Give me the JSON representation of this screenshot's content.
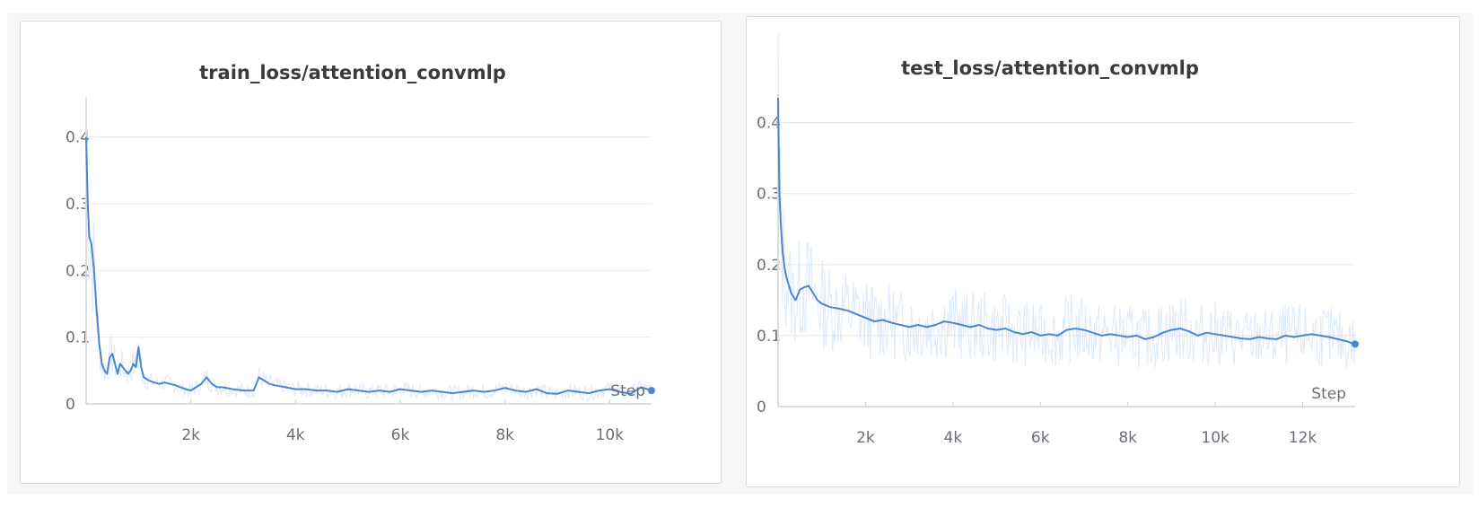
{
  "chart_data": [
    {
      "type": "line",
      "title": "train_loss/attention_convmlp",
      "xlabel": "Step",
      "ylabel": "",
      "xlim": [
        0,
        10800
      ],
      "ylim": [
        0,
        0.46
      ],
      "xticks": [
        2000,
        4000,
        6000,
        8000,
        10000
      ],
      "xtick_labels": [
        "2k",
        "4k",
        "6k",
        "8k",
        "10k"
      ],
      "yticks": [
        0,
        0.1,
        0.2,
        0.3,
        0.4
      ],
      "ytick_labels": [
        "0",
        "0.1",
        "0.2",
        "0.3",
        "0.4"
      ],
      "grid": "horizontal",
      "legend": "none",
      "series": [
        {
          "style": "smoothed",
          "color": "#4a86d1",
          "x": [
            0,
            30,
            60,
            100,
            150,
            200,
            250,
            300,
            350,
            400,
            450,
            500,
            550,
            600,
            650,
            700,
            750,
            800,
            850,
            900,
            950,
            1000,
            1050,
            1100,
            1200,
            1300,
            1400,
            1500,
            1600,
            1700,
            1800,
            1900,
            2000,
            2100,
            2200,
            2300,
            2400,
            2500,
            2600,
            2800,
            3000,
            3200,
            3300,
            3400,
            3500,
            3600,
            3800,
            4000,
            4200,
            4400,
            4600,
            4800,
            5000,
            5200,
            5400,
            5600,
            5800,
            6000,
            6200,
            6400,
            6600,
            6800,
            7000,
            7200,
            7400,
            7600,
            7800,
            8000,
            8200,
            8400,
            8600,
            8800,
            9000,
            9200,
            9400,
            9600,
            9800,
            10000,
            10200,
            10400,
            10600,
            10800
          ],
          "y": [
            0.4,
            0.3,
            0.25,
            0.24,
            0.2,
            0.14,
            0.09,
            0.06,
            0.05,
            0.045,
            0.07,
            0.075,
            0.06,
            0.045,
            0.06,
            0.055,
            0.05,
            0.045,
            0.05,
            0.06,
            0.055,
            0.085,
            0.055,
            0.04,
            0.035,
            0.032,
            0.03,
            0.032,
            0.03,
            0.028,
            0.025,
            0.022,
            0.02,
            0.025,
            0.03,
            0.04,
            0.03,
            0.025,
            0.025,
            0.022,
            0.02,
            0.02,
            0.04,
            0.035,
            0.03,
            0.028,
            0.025,
            0.022,
            0.022,
            0.02,
            0.02,
            0.018,
            0.022,
            0.02,
            0.018,
            0.02,
            0.018,
            0.022,
            0.02,
            0.018,
            0.02,
            0.018,
            0.016,
            0.018,
            0.02,
            0.018,
            0.02,
            0.024,
            0.02,
            0.018,
            0.022,
            0.016,
            0.015,
            0.02,
            0.018,
            0.016,
            0.02,
            0.022,
            0.018,
            0.015,
            0.025,
            0.02
          ]
        }
      ]
    },
    {
      "type": "line",
      "title": "test_loss/attention_convmlp",
      "xlabel": "Step",
      "ylabel": "",
      "xlim": [
        0,
        13200
      ],
      "ylim": [
        0,
        0.44
      ],
      "xticks": [
        2000,
        4000,
        6000,
        8000,
        10000,
        12000
      ],
      "xtick_labels": [
        "2k",
        "4k",
        "6k",
        "8k",
        "10k",
        "12k"
      ],
      "yticks": [
        0,
        0.1,
        0.2,
        0.3,
        0.4
      ],
      "ytick_labels": [
        "0",
        "0.1",
        "0.2",
        "0.3",
        "0.4"
      ],
      "grid": "horizontal",
      "legend": "none",
      "series": [
        {
          "style": "smoothed",
          "color": "#4a86d1",
          "x": [
            0,
            30,
            60,
            100,
            150,
            200,
            300,
            400,
            500,
            600,
            700,
            800,
            900,
            1000,
            1200,
            1400,
            1600,
            1800,
            2000,
            2200,
            2400,
            2600,
            2800,
            3000,
            3200,
            3400,
            3600,
            3800,
            4000,
            4200,
            4400,
            4600,
            4800,
            5000,
            5200,
            5400,
            5600,
            5800,
            6000,
            6200,
            6400,
            6600,
            6800,
            7000,
            7200,
            7400,
            7600,
            7800,
            8000,
            8200,
            8400,
            8600,
            8800,
            9000,
            9200,
            9400,
            9600,
            9800,
            10000,
            10200,
            10400,
            10600,
            10800,
            11000,
            11200,
            11400,
            11600,
            11800,
            12000,
            12200,
            12400,
            12600,
            12800,
            13000,
            13200
          ],
          "y": [
            0.435,
            0.3,
            0.26,
            0.22,
            0.195,
            0.18,
            0.16,
            0.15,
            0.165,
            0.168,
            0.17,
            0.16,
            0.15,
            0.145,
            0.14,
            0.138,
            0.135,
            0.13,
            0.125,
            0.12,
            0.122,
            0.118,
            0.115,
            0.112,
            0.115,
            0.112,
            0.115,
            0.12,
            0.118,
            0.115,
            0.112,
            0.115,
            0.11,
            0.108,
            0.11,
            0.105,
            0.102,
            0.105,
            0.1,
            0.102,
            0.1,
            0.108,
            0.11,
            0.108,
            0.104,
            0.1,
            0.102,
            0.1,
            0.098,
            0.1,
            0.095,
            0.098,
            0.104,
            0.108,
            0.11,
            0.106,
            0.1,
            0.104,
            0.102,
            0.1,
            0.098,
            0.096,
            0.095,
            0.098,
            0.096,
            0.095,
            0.1,
            0.098,
            0.1,
            0.102,
            0.1,
            0.098,
            0.095,
            0.092,
            0.088
          ]
        }
      ]
    }
  ]
}
